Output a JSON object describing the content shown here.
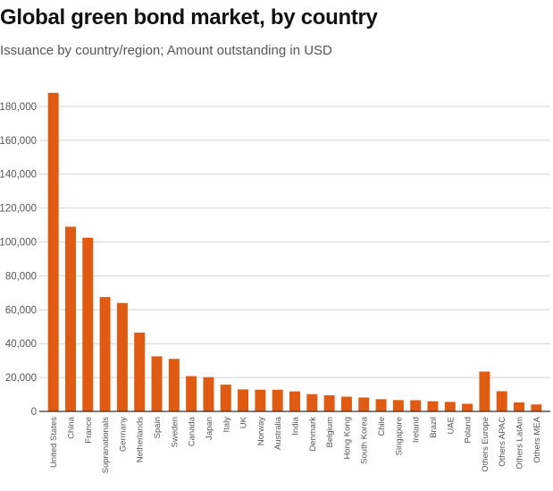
{
  "header": {
    "title": "Global green bond market, by country",
    "subtitle": "Issuance by country/region; Amount outstanding in USD"
  },
  "colors": {
    "bar": "#e05a12",
    "grid": "#d4d4d4",
    "axis": "#333333"
  },
  "chart_data": {
    "type": "bar",
    "title": "Global green bond market, by country",
    "subtitle": "Issuance by country/region; Amount outstanding in USD",
    "xlabel": "",
    "ylabel": "",
    "ylim": [
      0,
      190000
    ],
    "yticks": [
      0,
      20000,
      40000,
      60000,
      80000,
      100000,
      120000,
      140000,
      160000,
      180000
    ],
    "ytick_labels": [
      "0",
      "20,000",
      "40,000",
      "60,000",
      "80,000",
      "100,000",
      "120,000",
      "140,000",
      "160,000",
      "180,000"
    ],
    "grid": true,
    "categories": [
      "United States",
      "China",
      "France",
      "Supranationals",
      "Germany",
      "Netherlands",
      "Spain",
      "Sweden",
      "Canada",
      "Japan",
      "Italy",
      "UK",
      "Norway",
      "Australia",
      "India",
      "Denmark",
      "Belgium",
      "Hong Kong",
      "South Korea",
      "Chile",
      "Singapore",
      "Ireland",
      "Brazil",
      "UAE",
      "Poland",
      "Others Europe",
      "Others APAC",
      "Others LatAm",
      "Others MEA"
    ],
    "values": [
      188000,
      109000,
      102500,
      67500,
      64000,
      46500,
      32500,
      31000,
      20800,
      20200,
      15800,
      13000,
      12800,
      12800,
      11800,
      10200,
      9500,
      8700,
      8200,
      7200,
      6700,
      6600,
      6000,
      5600,
      4500,
      23500,
      11900,
      5300,
      4100
    ]
  }
}
